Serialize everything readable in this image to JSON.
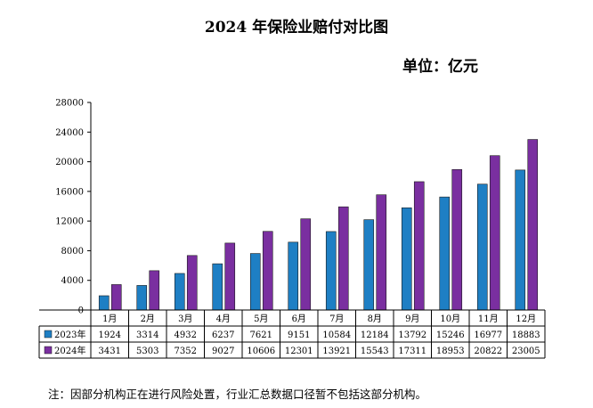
{
  "title": "2024 年保险业赔付对比图",
  "unit_label": "单位：亿元",
  "footnote": "注：因部分机构正在进行风险处置，行业汇总数据口径暂不包括这部分机构。",
  "colors": {
    "series_2023": "#1e7fc4",
    "series_2024": "#7a2fa0",
    "axis": "#000000"
  },
  "chart_data": {
    "type": "bar",
    "title": "2024 年保险业赔付对比图",
    "ylabel": "单位：亿元",
    "categories": [
      "1月",
      "2月",
      "3月",
      "4月",
      "5月",
      "6月",
      "7月",
      "8月",
      "9月",
      "10月",
      "11月",
      "12月"
    ],
    "series": [
      {
        "name": "2023年",
        "values": [
          1924,
          3314,
          4932,
          6237,
          7621,
          9151,
          10584,
          12184,
          13792,
          15246,
          16977,
          18883
        ]
      },
      {
        "name": "2024年",
        "values": [
          3431,
          5303,
          7352,
          9027,
          10606,
          12301,
          13921,
          15543,
          17311,
          18953,
          20822,
          23005
        ]
      }
    ],
    "ylim": [
      0,
      28000
    ],
    "yticks": [
      0,
      4000,
      8000,
      12000,
      16000,
      20000,
      24000,
      28000
    ],
    "grid": false,
    "legend": "data-table"
  }
}
